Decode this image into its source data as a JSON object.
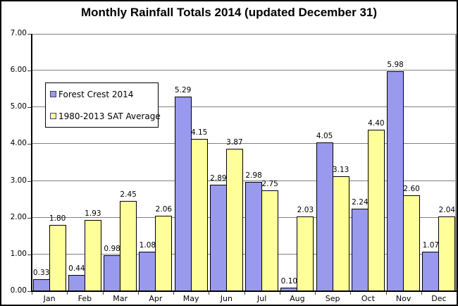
{
  "chart_data": {
    "type": "bar",
    "title": "Monthly Rainfall Totals 2014 (updated December 31)",
    "categories": [
      "Jan",
      "Feb",
      "Mar",
      "Apr",
      "May",
      "Jun",
      "Jul",
      "Aug",
      "Sep",
      "Oct",
      "Nov",
      "Dec"
    ],
    "series": [
      {
        "name": "Forest Crest 2014",
        "color": "#9999EE",
        "values": [
          0.33,
          0.44,
          0.98,
          1.08,
          5.29,
          2.89,
          2.98,
          0.1,
          4.05,
          2.24,
          5.98,
          1.07
        ]
      },
      {
        "name": "1980-2013 SAT Average",
        "color": "#FFFF99",
        "values": [
          1.8,
          1.93,
          2.45,
          2.06,
          4.15,
          3.87,
          2.75,
          2.03,
          3.13,
          4.4,
          2.6,
          2.04
        ]
      }
    ],
    "xlabel": "",
    "ylabel": "",
    "ylim": [
      0,
      7
    ],
    "ytick_step": 1,
    "ytick_labels": [
      "7.00",
      "6.00",
      "5.00",
      "4.00",
      "3.00",
      "2.00",
      "1.00",
      "0.00"
    ],
    "grid": true,
    "gridline_color": "#808080",
    "axis_color": "#000000",
    "bar_border_color": "#000000",
    "value_labels_shown": true,
    "value_label_decimals": 2,
    "legend_position": "upper-left-inside"
  }
}
